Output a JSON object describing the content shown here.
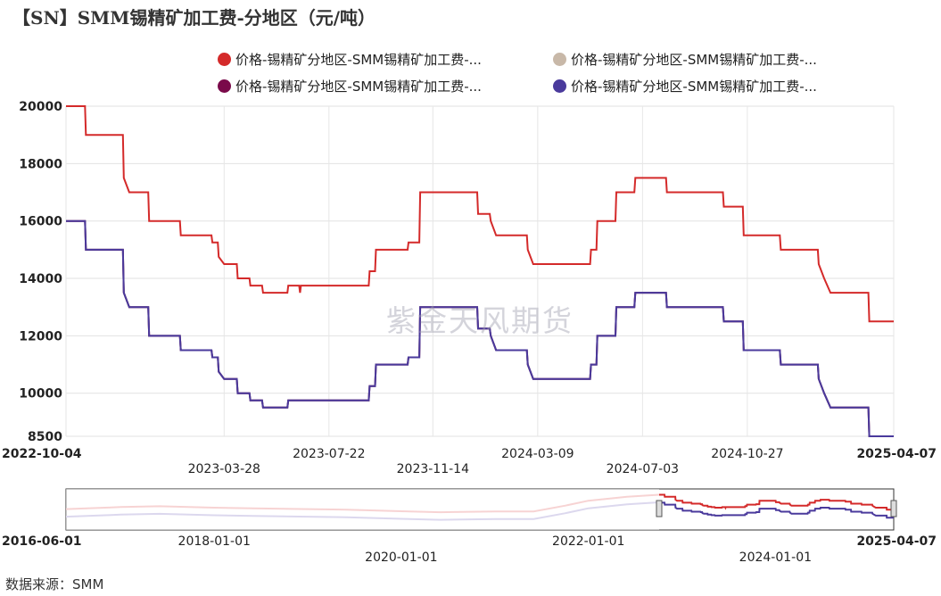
{
  "title": "【SN】SMM锡精矿加工费-分地区（元/吨）",
  "source_label": "数据来源：SMM",
  "watermark": "紫金天风期货",
  "legend": [
    {
      "label": "价格-锡精矿分地区-SMM锡精矿加工费-...",
      "color": "#d42a2a"
    },
    {
      "label": "价格-锡精矿分地区-SMM锡精矿加工费-...",
      "color": "#c8b8a8"
    },
    {
      "label": "价格-锡精矿分地区-SMM锡精矿加工费-...",
      "color": "#7a0a4a"
    },
    {
      "label": "价格-锡精矿分地区-SMM锡精矿加工费-...",
      "color": "#4a3a9c"
    }
  ],
  "navigator": {
    "labels_row1": [
      "2016-06-01",
      "2018-01-01",
      "2022-01-01",
      "2025-04-07"
    ],
    "labels_row2": [
      "2020-01-01",
      "2024-01-01"
    ]
  },
  "chart_data": {
    "type": "line",
    "title": "【SN】SMM锡精矿加工费-分地区（元/吨）",
    "xlabel": "",
    "ylabel": "",
    "x_range": [
      "2022-10-04",
      "2025-04-07"
    ],
    "ylim": [
      8500,
      20000
    ],
    "yticks": [
      8500,
      10000,
      12000,
      14000,
      16000,
      18000,
      20000
    ],
    "xticks_row1": [
      "2022-10-04",
      "2023-07-22",
      "2024-03-09",
      "2024-10-27",
      "2025-04-07"
    ],
    "xticks_row2": [
      "2023-03-28",
      "2023-11-14",
      "2024-07-03"
    ],
    "grid": true,
    "legend_position": "top",
    "series": [
      {
        "color": "#d42a2a",
        "points": [
          [
            "2022-10-04",
            20000
          ],
          [
            "2022-10-25",
            20000
          ],
          [
            "2022-10-26",
            19000
          ],
          [
            "2022-12-06",
            19000
          ],
          [
            "2022-12-07",
            17500
          ],
          [
            "2022-12-13",
            17000
          ],
          [
            "2023-01-03",
            17000
          ],
          [
            "2023-01-04",
            16000
          ],
          [
            "2023-02-07",
            16000
          ],
          [
            "2023-02-08",
            15500
          ],
          [
            "2023-03-14",
            15500
          ],
          [
            "2023-03-15",
            15250
          ],
          [
            "2023-03-21",
            15250
          ],
          [
            "2023-03-22",
            14750
          ],
          [
            "2023-03-28",
            14500
          ],
          [
            "2023-04-11",
            14500
          ],
          [
            "2023-04-12",
            14000
          ],
          [
            "2023-04-25",
            14000
          ],
          [
            "2023-04-26",
            13750
          ],
          [
            "2023-05-09",
            13750
          ],
          [
            "2023-05-10",
            13500
          ],
          [
            "2023-06-06",
            13500
          ],
          [
            "2023-06-07",
            13750
          ],
          [
            "2023-06-19",
            13750
          ],
          [
            "2023-06-20",
            13500
          ],
          [
            "2023-06-21",
            13750
          ],
          [
            "2023-09-04",
            13750
          ],
          [
            "2023-09-05",
            14250
          ],
          [
            "2023-09-11",
            14250
          ],
          [
            "2023-09-12",
            15000
          ],
          [
            "2023-10-17",
            15000
          ],
          [
            "2023-10-18",
            15250
          ],
          [
            "2023-10-30",
            15250
          ],
          [
            "2023-10-31",
            17000
          ],
          [
            "2024-01-02",
            17000
          ],
          [
            "2024-01-03",
            16250
          ],
          [
            "2024-01-16",
            16250
          ],
          [
            "2024-01-17",
            16000
          ],
          [
            "2024-01-23",
            15500
          ],
          [
            "2024-02-26",
            15500
          ],
          [
            "2024-02-27",
            15000
          ],
          [
            "2024-03-04",
            14500
          ],
          [
            "2024-05-06",
            14500
          ],
          [
            "2024-05-07",
            15000
          ],
          [
            "2024-05-13",
            15000
          ],
          [
            "2024-05-14",
            16000
          ],
          [
            "2024-06-03",
            16000
          ],
          [
            "2024-06-04",
            17000
          ],
          [
            "2024-06-24",
            17000
          ],
          [
            "2024-06-25",
            17500
          ],
          [
            "2024-07-29",
            17500
          ],
          [
            "2024-07-30",
            17000
          ],
          [
            "2024-09-30",
            17000
          ],
          [
            "2024-10-01",
            16500
          ],
          [
            "2024-10-22",
            16500
          ],
          [
            "2024-10-23",
            15500
          ],
          [
            "2024-12-02",
            15500
          ],
          [
            "2024-12-03",
            15000
          ],
          [
            "2025-01-13",
            15000
          ],
          [
            "2025-01-14",
            14500
          ],
          [
            "2025-01-20",
            14000
          ],
          [
            "2025-01-27",
            13500
          ],
          [
            "2025-03-10",
            13500
          ],
          [
            "2025-03-11",
            12500
          ],
          [
            "2025-04-07",
            12500
          ]
        ]
      },
      {
        "color": "#c8b8a8",
        "points": [
          [
            "2022-10-04",
            16000
          ],
          [
            "2022-10-25",
            16000
          ],
          [
            "2022-10-26",
            15000
          ],
          [
            "2022-12-06",
            15000
          ],
          [
            "2022-12-07",
            13500
          ],
          [
            "2022-12-13",
            13000
          ],
          [
            "2023-01-03",
            13000
          ],
          [
            "2023-01-04",
            12000
          ],
          [
            "2023-02-07",
            12000
          ],
          [
            "2023-02-08",
            11500
          ],
          [
            "2023-03-14",
            11500
          ],
          [
            "2023-03-15",
            11250
          ],
          [
            "2023-03-21",
            11250
          ],
          [
            "2023-03-22",
            10750
          ],
          [
            "2023-03-28",
            10500
          ],
          [
            "2023-04-11",
            10500
          ],
          [
            "2023-04-12",
            10000
          ],
          [
            "2023-04-25",
            10000
          ],
          [
            "2023-04-26",
            9750
          ],
          [
            "2023-05-09",
            9750
          ],
          [
            "2023-05-10",
            9500
          ],
          [
            "2023-06-06",
            9500
          ],
          [
            "2023-06-07",
            9750
          ],
          [
            "2023-09-04",
            9750
          ],
          [
            "2023-09-05",
            10250
          ],
          [
            "2023-09-11",
            10250
          ],
          [
            "2023-09-12",
            11000
          ],
          [
            "2023-10-17",
            11000
          ],
          [
            "2023-10-18",
            11250
          ],
          [
            "2023-10-30",
            11250
          ],
          [
            "2023-10-31",
            13000
          ],
          [
            "2024-01-02",
            13000
          ],
          [
            "2024-01-03",
            12250
          ],
          [
            "2024-01-16",
            12250
          ],
          [
            "2024-01-17",
            12000
          ],
          [
            "2024-01-23",
            11500
          ],
          [
            "2024-02-26",
            11500
          ],
          [
            "2024-02-27",
            11000
          ],
          [
            "2024-03-04",
            10500
          ],
          [
            "2024-05-06",
            10500
          ],
          [
            "2024-05-07",
            11000
          ],
          [
            "2024-05-13",
            11000
          ],
          [
            "2024-05-14",
            12000
          ],
          [
            "2024-06-03",
            12000
          ],
          [
            "2024-06-04",
            13000
          ],
          [
            "2024-06-24",
            13000
          ],
          [
            "2024-06-25",
            13500
          ],
          [
            "2024-07-29",
            13500
          ],
          [
            "2024-07-30",
            13000
          ],
          [
            "2024-09-30",
            13000
          ],
          [
            "2024-10-01",
            12500
          ],
          [
            "2024-10-22",
            12500
          ],
          [
            "2024-10-23",
            11500
          ],
          [
            "2024-12-02",
            11500
          ],
          [
            "2024-12-03",
            11000
          ],
          [
            "2025-01-13",
            11000
          ],
          [
            "2025-01-14",
            10500
          ],
          [
            "2025-01-20",
            10000
          ],
          [
            "2025-01-27",
            9500
          ],
          [
            "2025-03-10",
            9500
          ],
          [
            "2025-03-11",
            8500
          ],
          [
            "2025-04-07",
            8500
          ]
        ]
      },
      {
        "color": "#7a0a4a",
        "points": [
          [
            "2022-10-04",
            16000
          ],
          [
            "2022-10-25",
            16000
          ],
          [
            "2022-10-26",
            15000
          ],
          [
            "2022-12-06",
            15000
          ],
          [
            "2022-12-07",
            13500
          ],
          [
            "2022-12-13",
            13000
          ],
          [
            "2023-01-03",
            13000
          ],
          [
            "2023-01-04",
            12000
          ],
          [
            "2023-02-07",
            12000
          ],
          [
            "2023-02-08",
            11500
          ],
          [
            "2023-03-14",
            11500
          ],
          [
            "2023-03-15",
            11250
          ],
          [
            "2023-03-21",
            11250
          ],
          [
            "2023-03-22",
            10750
          ],
          [
            "2023-03-28",
            10500
          ],
          [
            "2023-04-11",
            10500
          ],
          [
            "2023-04-12",
            10000
          ],
          [
            "2023-04-25",
            10000
          ],
          [
            "2023-04-26",
            9750
          ],
          [
            "2023-05-09",
            9750
          ],
          [
            "2023-05-10",
            9500
          ],
          [
            "2023-06-06",
            9500
          ],
          [
            "2023-06-07",
            9750
          ],
          [
            "2023-09-04",
            9750
          ],
          [
            "2023-09-05",
            10250
          ],
          [
            "2023-09-11",
            10250
          ],
          [
            "2023-09-12",
            11000
          ],
          [
            "2023-10-17",
            11000
          ],
          [
            "2023-10-18",
            11250
          ],
          [
            "2023-10-30",
            11250
          ],
          [
            "2023-10-31",
            13000
          ],
          [
            "2024-01-02",
            13000
          ],
          [
            "2024-01-03",
            12250
          ],
          [
            "2024-01-16",
            12250
          ],
          [
            "2024-01-17",
            12000
          ],
          [
            "2024-01-23",
            11500
          ],
          [
            "2024-02-26",
            11500
          ],
          [
            "2024-02-27",
            11000
          ],
          [
            "2024-03-04",
            10500
          ],
          [
            "2024-05-06",
            10500
          ],
          [
            "2024-05-07",
            11000
          ],
          [
            "2024-05-13",
            11000
          ],
          [
            "2024-05-14",
            12000
          ],
          [
            "2024-06-03",
            12000
          ],
          [
            "2024-06-04",
            13000
          ],
          [
            "2024-06-24",
            13000
          ],
          [
            "2024-06-25",
            13500
          ],
          [
            "2024-07-29",
            13500
          ],
          [
            "2024-07-30",
            13000
          ],
          [
            "2024-09-30",
            13000
          ],
          [
            "2024-10-01",
            12500
          ],
          [
            "2024-10-22",
            12500
          ],
          [
            "2024-10-23",
            11500
          ],
          [
            "2024-12-02",
            11500
          ],
          [
            "2024-12-03",
            11000
          ],
          [
            "2025-01-13",
            11000
          ],
          [
            "2025-01-14",
            10500
          ],
          [
            "2025-01-20",
            10000
          ],
          [
            "2025-01-27",
            9500
          ],
          [
            "2025-03-10",
            9500
          ],
          [
            "2025-03-11",
            8500
          ],
          [
            "2025-04-07",
            8500
          ]
        ]
      },
      {
        "color": "#4a3a9c",
        "points": [
          [
            "2022-10-04",
            16000
          ],
          [
            "2022-10-25",
            16000
          ],
          [
            "2022-10-26",
            15000
          ],
          [
            "2022-12-06",
            15000
          ],
          [
            "2022-12-07",
            13500
          ],
          [
            "2022-12-13",
            13000
          ],
          [
            "2023-01-03",
            13000
          ],
          [
            "2023-01-04",
            12000
          ],
          [
            "2023-02-07",
            12000
          ],
          [
            "2023-02-08",
            11500
          ],
          [
            "2023-03-14",
            11500
          ],
          [
            "2023-03-15",
            11250
          ],
          [
            "2023-03-21",
            11250
          ],
          [
            "2023-03-22",
            10750
          ],
          [
            "2023-03-28",
            10500
          ],
          [
            "2023-04-11",
            10500
          ],
          [
            "2023-04-12",
            10000
          ],
          [
            "2023-04-25",
            10000
          ],
          [
            "2023-04-26",
            9750
          ],
          [
            "2023-05-09",
            9750
          ],
          [
            "2023-05-10",
            9500
          ],
          [
            "2023-06-06",
            9500
          ],
          [
            "2023-06-07",
            9750
          ],
          [
            "2023-09-04",
            9750
          ],
          [
            "2023-09-05",
            10250
          ],
          [
            "2023-09-11",
            10250
          ],
          [
            "2023-09-12",
            11000
          ],
          [
            "2023-10-17",
            11000
          ],
          [
            "2023-10-18",
            11250
          ],
          [
            "2023-10-30",
            11250
          ],
          [
            "2023-10-31",
            13000
          ],
          [
            "2024-01-02",
            13000
          ],
          [
            "2024-01-03",
            12250
          ],
          [
            "2024-01-16",
            12250
          ],
          [
            "2024-01-17",
            12000
          ],
          [
            "2024-01-23",
            11500
          ],
          [
            "2024-02-26",
            11500
          ],
          [
            "2024-02-27",
            11000
          ],
          [
            "2024-03-04",
            10500
          ],
          [
            "2024-05-06",
            10500
          ],
          [
            "2024-05-07",
            11000
          ],
          [
            "2024-05-13",
            11000
          ],
          [
            "2024-05-14",
            12000
          ],
          [
            "2024-06-03",
            12000
          ],
          [
            "2024-06-04",
            13000
          ],
          [
            "2024-06-24",
            13000
          ],
          [
            "2024-06-25",
            13500
          ],
          [
            "2024-07-29",
            13500
          ],
          [
            "2024-07-30",
            13000
          ],
          [
            "2024-09-30",
            13000
          ],
          [
            "2024-10-01",
            12500
          ],
          [
            "2024-10-22",
            12500
          ],
          [
            "2024-10-23",
            11500
          ],
          [
            "2024-12-02",
            11500
          ],
          [
            "2024-12-03",
            11000
          ],
          [
            "2025-01-13",
            11000
          ],
          [
            "2025-01-14",
            10500
          ],
          [
            "2025-01-20",
            10000
          ],
          [
            "2025-01-27",
            9500
          ],
          [
            "2025-03-10",
            9500
          ],
          [
            "2025-03-11",
            8500
          ],
          [
            "2025-04-07",
            8500
          ]
        ]
      }
    ]
  }
}
